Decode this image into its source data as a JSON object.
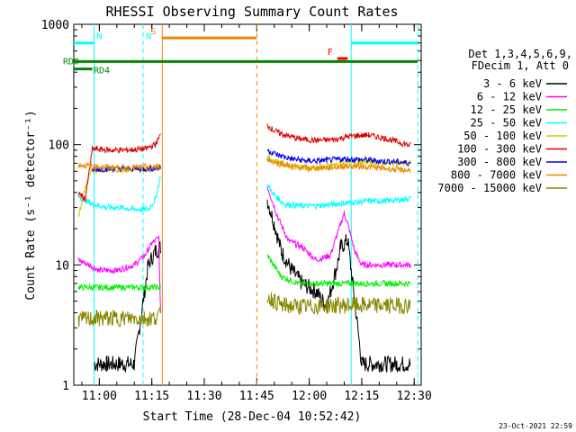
{
  "chart_data": {
    "type": "line",
    "title": "RHESSI Observing Summary Count Rates",
    "xlabel": "Start Time (28-Dec-04 10:52:42)",
    "ylabel": "Count Rate (s⁻¹ detector⁻¹)",
    "yscale": "log",
    "ylim": [
      1,
      1000
    ],
    "xlim": [
      "10:52:42",
      "12:32:00"
    ],
    "x_ticks": [
      "11:00",
      "11:15",
      "11:30",
      "11:45",
      "12:00",
      "12:15",
      "12:30"
    ],
    "y_ticks": [
      "1",
      "10",
      "100",
      "1000"
    ],
    "info": [
      "Det 1,3,4,5,6,9,",
      "FDecim 1, Att 0"
    ],
    "footer": "23-Oct-2021 22:59",
    "series": [
      {
        "name": "3 - 6 keV",
        "color": "#000000",
        "segments": [
          {
            "x": [
              "10:58:30",
              "11:02",
              "11:06",
              "11:10",
              "11:14",
              "11:16",
              "11:17:30"
            ],
            "y": [
              1.5,
              1.5,
              1.5,
              1.5,
              10,
              13,
              14
            ]
          },
          {
            "x": [
              "11:48",
              "11:50",
              "11:52",
              "11:55",
              "11:58",
              "12:02",
              "12:05",
              "12:08",
              "12:09",
              "12:11",
              "12:13",
              "12:15",
              "12:20",
              "12:25",
              "12:29"
            ],
            "y": [
              35,
              22,
              13,
              9,
              7,
              6,
              4.5,
              10,
              14,
              16,
              5,
              1.5,
              1.5,
              1.5,
              1.5
            ]
          }
        ]
      },
      {
        "name": "6 - 12 keV",
        "color": "#ff00ff",
        "segments": [
          {
            "x": [
              "10:54",
              "10:57",
              "11:00",
              "11:05",
              "11:10",
              "11:13",
              "11:15",
              "11:17",
              "11:17:30"
            ],
            "y": [
              11,
              10,
              9,
              9,
              10,
              12,
              15,
              17,
              4
            ]
          },
          {
            "x": [
              "11:48",
              "11:51",
              "11:54",
              "11:58",
              "12:02",
              "12:06",
              "12:08",
              "12:10",
              "12:11",
              "12:13",
              "12:15",
              "12:20",
              "12:25",
              "12:29"
            ],
            "y": [
              45,
              25,
              16,
              14,
              11,
              12,
              18,
              27,
              22,
              13,
              10,
              10,
              10,
              10
            ]
          }
        ]
      },
      {
        "name": "12 - 25 keV",
        "color": "#00ee00",
        "segments": [
          {
            "x": [
              "10:54",
              "11:00",
              "11:05",
              "11:10",
              "11:15",
              "11:17:30"
            ],
            "y": [
              6.5,
              6.5,
              6.5,
              6.5,
              6.5,
              6.5
            ]
          },
          {
            "x": [
              "11:48",
              "11:52",
              "11:57",
              "12:02",
              "12:07",
              "12:12",
              "12:17",
              "12:22",
              "12:29"
            ],
            "y": [
              12,
              8,
              7,
              7,
              7,
              7,
              7,
              7,
              7
            ]
          }
        ]
      },
      {
        "name": "25 - 50 keV",
        "color": "#00ffff",
        "segments": [
          {
            "x": [
              "10:54",
              "10:58",
              "11:02",
              "11:06",
              "11:10",
              "11:14",
              "11:16",
              "11:17:30"
            ],
            "y": [
              37,
              32,
              30,
              30,
              29,
              29,
              35,
              55
            ]
          },
          {
            "x": [
              "11:48",
              "11:50",
              "11:53",
              "11:57",
              "12:02",
              "12:07",
              "12:12",
              "12:17",
              "12:22",
              "12:27",
              "12:29"
            ],
            "y": [
              46,
              38,
              32,
              31,
              31,
              32,
              33,
              34,
              34,
              35,
              36
            ]
          }
        ]
      },
      {
        "name": "50 - 100 keV",
        "color": "#cccc00",
        "segments": [
          {
            "x": [
              "10:54",
              "10:56",
              "10:58",
              "11:03",
              "11:08",
              "11:13",
              "11:17:30"
            ],
            "y": [
              25,
              44,
              62,
              62,
              62,
              62,
              65
            ]
          },
          {
            "x": [
              "11:48",
              "11:51",
              "11:55",
              "12:00",
              "12:05",
              "12:10",
              "12:15",
              "12:20",
              "12:25",
              "12:29"
            ],
            "y": [
              78,
              72,
              66,
              63,
              66,
              70,
              72,
              71,
              70,
              70
            ]
          }
        ]
      },
      {
        "name": "100 - 300 keV",
        "color": "#dd0000",
        "segments": [
          {
            "x": [
              "10:54",
              "10:56",
              "10:58",
              "11:03",
              "11:08",
              "11:13",
              "11:16",
              "11:17:30"
            ],
            "y": [
              40,
              35,
              92,
              90,
              90,
              92,
              100,
              120
            ]
          },
          {
            "x": [
              "11:48",
              "11:50",
              "11:53",
              "11:57",
              "12:02",
              "12:07",
              "12:12",
              "12:17",
              "12:22",
              "12:27",
              "12:29"
            ],
            "y": [
              145,
              130,
              120,
              112,
              108,
              110,
              118,
              120,
              112,
              102,
              98
            ]
          }
        ]
      },
      {
        "name": "300 - 800 keV",
        "color": "#0000ee",
        "segments": [
          {
            "x": [
              "10:58",
              "11:03",
              "11:08",
              "11:13",
              "11:17:30"
            ],
            "y": [
              62,
              63,
              63,
              63,
              64
            ]
          },
          {
            "x": [
              "11:48",
              "11:51",
              "11:55",
              "12:00",
              "12:05",
              "12:10",
              "12:15",
              "12:20",
              "12:25",
              "12:29"
            ],
            "y": [
              90,
              82,
              76,
              73,
              74,
              76,
              75,
              73,
              72,
              70
            ]
          }
        ]
      },
      {
        "name": "800 - 7000 keV",
        "color": "#ee8800",
        "segments": [
          {
            "x": [
              "10:54",
              "10:58",
              "11:03",
              "11:08",
              "11:13",
              "11:17:30"
            ],
            "y": [
              68,
              66,
              65,
              64,
              65,
              66
            ]
          },
          {
            "x": [
              "11:48",
              "11:51",
              "11:55",
              "12:00",
              "12:05",
              "12:10",
              "12:15",
              "12:20",
              "12:25",
              "12:29"
            ],
            "y": [
              75,
              70,
              66,
              64,
              64,
              66,
              66,
              64,
              62,
              61
            ]
          }
        ]
      },
      {
        "name": "7000 - 15000 keV",
        "color": "#888800",
        "segments": [
          {
            "x": [
              "10:54",
              "11:00",
              "11:05",
              "11:10",
              "11:15",
              "11:17:30"
            ],
            "y": [
              3.5,
              3.6,
              3.6,
              3.6,
              3.6,
              3.8
            ]
          },
          {
            "x": [
              "11:48",
              "11:52",
              "11:57",
              "12:02",
              "12:07",
              "12:12",
              "12:17",
              "12:22",
              "12:29"
            ],
            "y": [
              5.5,
              4.6,
              4.5,
              4.5,
              4.6,
              4.6,
              4.6,
              4.6,
              4.6
            ]
          }
        ]
      }
    ],
    "shading": [
      {
        "label": "N",
        "color": "#00ffff",
        "x": [
          "10:52:42",
          "10:58:30"
        ],
        "y": 700
      },
      {
        "label": "N",
        "color": "#00ffff",
        "x": [
          "11:12:30",
          "11:12:30"
        ],
        "y": 700
      },
      {
        "label": "",
        "color": "#00ffff",
        "x": [
          "12:12",
          "12:31"
        ],
        "y": 700
      },
      {
        "label": "S",
        "color": "#ee8800",
        "x": [
          "11:18",
          "11:45"
        ],
        "y": 770
      },
      {
        "label": "F",
        "color": "#ff0000",
        "x": [
          "12:08",
          "12:11"
        ],
        "y": 520
      },
      {
        "label": "RD0",
        "color": "#008800",
        "x": [
          "10:52:42",
          "12:31"
        ],
        "y": 490
      },
      {
        "label": "RD4",
        "color": "#008800",
        "x": [
          "10:52:42",
          "10:58"
        ],
        "y": 425
      }
    ],
    "vlines": [
      {
        "x": "10:58:30",
        "color": "#00ffff",
        "style": "solid"
      },
      {
        "x": "11:12:30",
        "color": "#00ffff",
        "style": "dashed"
      },
      {
        "x": "11:18",
        "color": "#ee8800",
        "style": "solid"
      },
      {
        "x": "11:45",
        "color": "#ee8800",
        "style": "dashed"
      },
      {
        "x": "12:12",
        "color": "#00ffff",
        "style": "solid"
      },
      {
        "x": "12:31",
        "color": "#00ffff",
        "style": "dashed"
      }
    ]
  }
}
